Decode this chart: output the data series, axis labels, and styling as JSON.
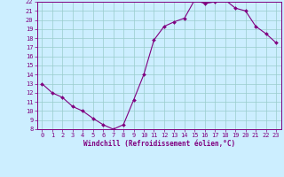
{
  "x": [
    0,
    1,
    2,
    3,
    4,
    5,
    6,
    7,
    8,
    9,
    10,
    11,
    12,
    13,
    14,
    15,
    16,
    17,
    18,
    19,
    20,
    21,
    22,
    23
  ],
  "y": [
    13,
    12,
    11.5,
    10.5,
    10,
    9.2,
    8.5,
    8.0,
    8.5,
    11.2,
    14.0,
    17.8,
    19.3,
    19.8,
    20.2,
    22.2,
    21.8,
    22.0,
    22.2,
    21.3,
    21.0,
    19.3,
    18.5,
    17.5
  ],
  "line_color": "#800080",
  "marker": "D",
  "marker_size": 2.0,
  "bg_color": "#cceeff",
  "grid_color": "#99cccc",
  "xlabel": "Windchill (Refroidissement éolien,°C)",
  "ylim": [
    8,
    22
  ],
  "xlim": [
    -0.5,
    23.5
  ],
  "yticks": [
    8,
    9,
    10,
    11,
    12,
    13,
    14,
    15,
    16,
    17,
    18,
    19,
    20,
    21,
    22
  ],
  "xticks": [
    0,
    1,
    2,
    3,
    4,
    5,
    6,
    7,
    8,
    9,
    10,
    11,
    12,
    13,
    14,
    15,
    16,
    17,
    18,
    19,
    20,
    21,
    22,
    23
  ],
  "tick_color": "#800080",
  "label_color": "#800080",
  "spine_color": "#800080"
}
